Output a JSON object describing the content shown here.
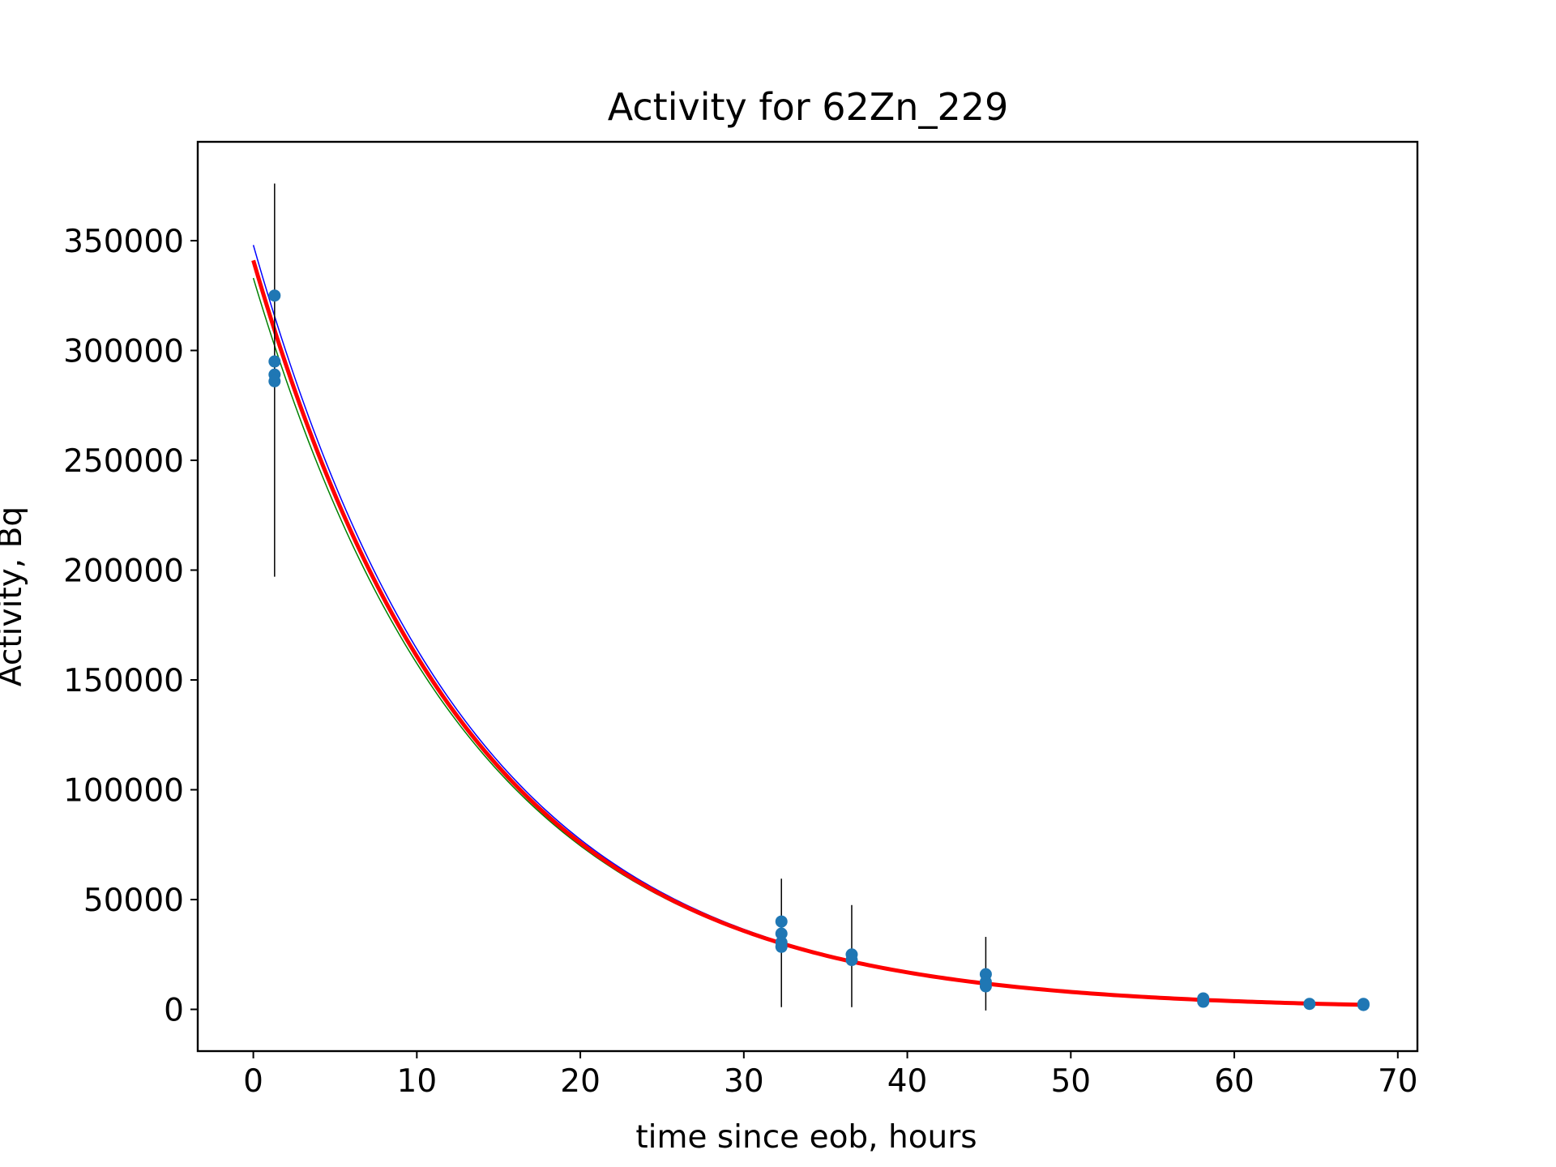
{
  "chart_data": {
    "type": "scatter",
    "title": "Activity for 62Zn_229",
    "xlabel": "time since eob, hours",
    "ylabel": "Activity, Bq",
    "xlim": [
      -3.4,
      71.2
    ],
    "ylim": [
      -19000,
      395000
    ],
    "xticks": [
      0,
      10,
      20,
      30,
      40,
      50,
      60,
      70
    ],
    "yticks": [
      0,
      50000,
      100000,
      150000,
      200000,
      250000,
      300000,
      350000
    ],
    "xtick_labels": [
      "0",
      "10",
      "20",
      "30",
      "40",
      "50",
      "60",
      "70"
    ],
    "ytick_labels": [
      "0",
      "50000",
      "100000",
      "150000",
      "200000",
      "250000",
      "300000",
      "350000"
    ],
    "grid": false,
    "points": [
      {
        "x": 1.3,
        "y": 325000
      },
      {
        "x": 1.3,
        "y": 295000
      },
      {
        "x": 1.3,
        "y": 289000
      },
      {
        "x": 1.3,
        "y": 286000
      },
      {
        "x": 32.3,
        "y": 40000
      },
      {
        "x": 32.3,
        "y": 34500
      },
      {
        "x": 32.3,
        "y": 30500
      },
      {
        "x": 32.3,
        "y": 28500
      },
      {
        "x": 36.6,
        "y": 25000
      },
      {
        "x": 36.6,
        "y": 22500
      },
      {
        "x": 44.8,
        "y": 16000
      },
      {
        "x": 44.8,
        "y": 12500
      },
      {
        "x": 44.8,
        "y": 10500
      },
      {
        "x": 58.1,
        "y": 5000
      },
      {
        "x": 58.1,
        "y": 3500
      },
      {
        "x": 64.6,
        "y": 2500
      },
      {
        "x": 67.9,
        "y": 2000
      },
      {
        "x": 67.9,
        "y": 2500
      }
    ],
    "error_bars": [
      {
        "x": 1.3,
        "low": 197000,
        "high": 376000
      },
      {
        "x": 32.3,
        "low": 1000,
        "high": 59500
      },
      {
        "x": 36.6,
        "low": 1000,
        "high": 47500
      },
      {
        "x": 44.8,
        "low": -500,
        "high": 33000
      }
    ],
    "fit_curves": [
      {
        "color": "#0000ff",
        "A0": 348000,
        "half_life_hours": 9.22,
        "x_start": 0,
        "x_end": 67.9,
        "width": 1.5
      },
      {
        "color": "#008000",
        "A0": 333000,
        "half_life_hours": 9.26,
        "x_start": 0,
        "x_end": 67.9,
        "width": 1.5
      },
      {
        "color": "#ff0000",
        "A0": 341000,
        "half_life_hours": 9.22,
        "x_start": 0,
        "x_end": 67.9,
        "width": 5
      }
    ],
    "colors": {
      "points": "#1f77b4",
      "error_bars": "#000000"
    }
  }
}
